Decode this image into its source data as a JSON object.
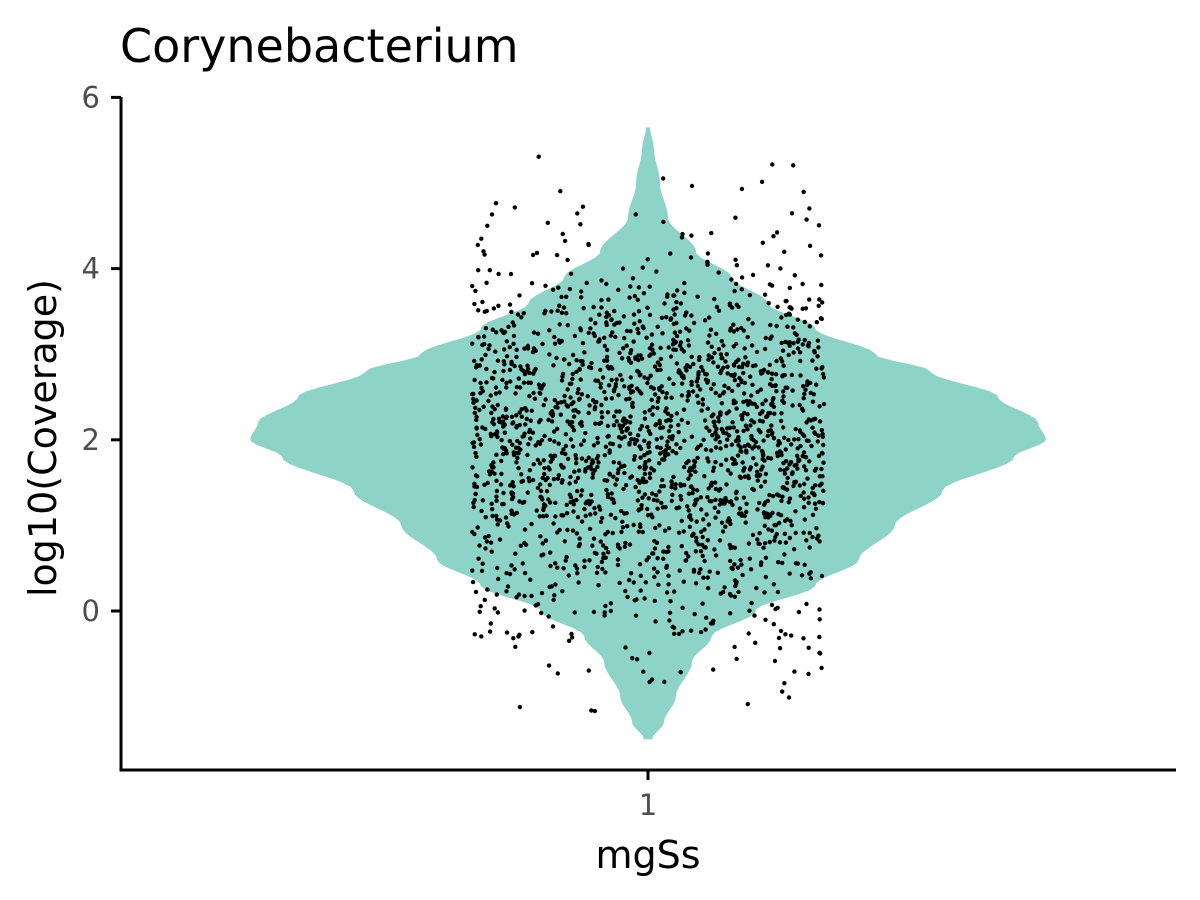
{
  "chart_data": {
    "type": "violin",
    "title": "Corynebacterium",
    "xlabel": "mgSs",
    "ylabel": "log10(Coverage)",
    "categories": [
      "1"
    ],
    "yticks": [
      "0",
      "2",
      "4",
      "6"
    ],
    "ylim": [
      -1.85,
      6
    ],
    "grid": false,
    "legend": "none",
    "colors": {
      "violin_fill": "#8dd3c7",
      "points": "#000000",
      "axis": "#000000"
    },
    "violin": {
      "category": "1",
      "density_profile": [
        [
          -1.5,
          0.01
        ],
        [
          -1.3,
          0.04
        ],
        [
          -1.0,
          0.07
        ],
        [
          -0.6,
          0.11
        ],
        [
          -0.3,
          0.16
        ],
        [
          0.0,
          0.27
        ],
        [
          0.3,
          0.42
        ],
        [
          0.6,
          0.53
        ],
        [
          1.0,
          0.62
        ],
        [
          1.4,
          0.74
        ],
        [
          1.8,
          0.92
        ],
        [
          2.0,
          1.0
        ],
        [
          2.2,
          0.98
        ],
        [
          2.5,
          0.88
        ],
        [
          2.8,
          0.71
        ],
        [
          3.0,
          0.57
        ],
        [
          3.3,
          0.42
        ],
        [
          3.6,
          0.3
        ],
        [
          3.9,
          0.21
        ],
        [
          4.2,
          0.12
        ],
        [
          4.6,
          0.05
        ],
        [
          5.0,
          0.03
        ],
        [
          5.4,
          0.015
        ],
        [
          5.65,
          0.005
        ]
      ]
    },
    "points": {
      "category": "1",
      "count": 2000,
      "center": 2.0,
      "spread": 1.1,
      "min": -1.47,
      "max": 5.65,
      "jitter_width": 0.66
    }
  }
}
